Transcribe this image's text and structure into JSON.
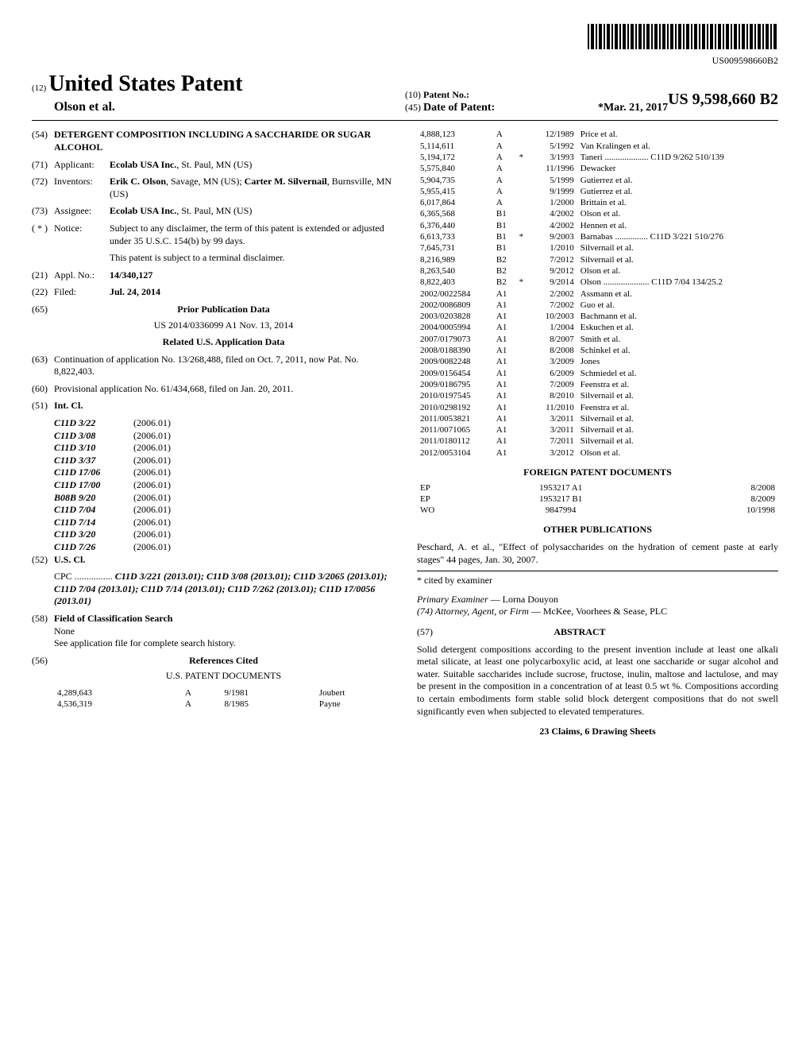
{
  "barcode_text": "US009598660B2",
  "header": {
    "prefix": "(12)",
    "title": "United States Patent",
    "authors": "Olson et al.",
    "patent_no_prefix": "(10)",
    "patent_no_label": "Patent No.:",
    "patent_no": "US 9,598,660 B2",
    "date_prefix": "(45)",
    "date_label": "Date of Patent:",
    "date_value": "*Mar. 21, 2017"
  },
  "left": {
    "title_num": "(54)",
    "title": "DETERGENT COMPOSITION INCLUDING A SACCHARIDE OR SUGAR ALCOHOL",
    "applicant_num": "(71)",
    "applicant_label": "Applicant:",
    "applicant": "Ecolab USA Inc., St. Paul, MN (US)",
    "inventors_num": "(72)",
    "inventors_label": "Inventors:",
    "inventors": "Erik C. Olson, Savage, MN (US); Carter M. Silvernail, Burnsville, MN (US)",
    "assignee_num": "(73)",
    "assignee_label": "Assignee:",
    "assignee": "Ecolab USA Inc., St. Paul, MN (US)",
    "notice_num": "( * )",
    "notice_label": "Notice:",
    "notice1": "Subject to any disclaimer, the term of this patent is extended or adjusted under 35 U.S.C. 154(b) by 99 days.",
    "notice2": "This patent is subject to a terminal disclaimer.",
    "appl_num": "(21)",
    "appl_label": "Appl. No.:",
    "appl_value": "14/340,127",
    "filed_num": "(22)",
    "filed_label": "Filed:",
    "filed_value": "Jul. 24, 2014",
    "prior_num": "(65)",
    "prior_title": "Prior Publication Data",
    "prior_line": "US 2014/0336099 A1    Nov. 13, 2014",
    "related_title": "Related U.S. Application Data",
    "cont_num": "(63)",
    "cont_text": "Continuation of application No. 13/268,488, filed on Oct. 7, 2011, now Pat. No. 8,822,403.",
    "prov_num": "(60)",
    "prov_text": "Provisional application No. 61/434,668, filed on Jan. 20, 2011.",
    "intcl_num": "(51)",
    "intcl_label": "Int. Cl.",
    "intcl": [
      [
        "C11D 3/22",
        "(2006.01)"
      ],
      [
        "C11D 3/08",
        "(2006.01)"
      ],
      [
        "C11D 3/10",
        "(2006.01)"
      ],
      [
        "C11D 3/37",
        "(2006.01)"
      ],
      [
        "C11D 17/06",
        "(2006.01)"
      ],
      [
        "C11D 17/00",
        "(2006.01)"
      ],
      [
        "B08B 9/20",
        "(2006.01)"
      ],
      [
        "C11D 7/04",
        "(2006.01)"
      ],
      [
        "C11D 7/14",
        "(2006.01)"
      ],
      [
        "C11D 3/20",
        "(2006.01)"
      ],
      [
        "C11D 7/26",
        "(2006.01)"
      ]
    ],
    "uscl_num": "(52)",
    "uscl_label": "U.S. Cl.",
    "cpc_label": "CPC",
    "cpc_text": "C11D 3/221 (2013.01); C11D 3/08 (2013.01); C11D 3/2065 (2013.01); C11D 7/04 (2013.01); C11D 7/14 (2013.01); C11D 7/262 (2013.01); C11D 17/0056 (2013.01)",
    "fcs_num": "(58)",
    "fcs_label": "Field of Classification Search",
    "fcs_none": "None",
    "fcs_text": "See application file for complete search history.",
    "refs_num": "(56)",
    "refs_title": "References Cited",
    "us_docs_title": "U.S. PATENT DOCUMENTS",
    "us_docs_left": [
      [
        "4,289,643",
        "A",
        "9/1981",
        "Joubert"
      ],
      [
        "4,536,319",
        "A",
        "8/1985",
        "Payne"
      ]
    ]
  },
  "right": {
    "us_docs": [
      [
        "4,888,123",
        "A",
        "",
        "12/1989",
        "Price et al."
      ],
      [
        "5,114,611",
        "A",
        "",
        "5/1992",
        "Van Kralingen et al."
      ],
      [
        "5,194,172",
        "A",
        "*",
        "3/1993",
        "Taneri .................... C11D 9/262 510/139"
      ],
      [
        "5,575,840",
        "A",
        "",
        "11/1996",
        "Dewacker"
      ],
      [
        "5,904,735",
        "A",
        "",
        "5/1999",
        "Gutierrez et al."
      ],
      [
        "5,955,415",
        "A",
        "",
        "9/1999",
        "Gutierrez et al."
      ],
      [
        "6,017,864",
        "A",
        "",
        "1/2000",
        "Brittain et al."
      ],
      [
        "6,365,568",
        "B1",
        "",
        "4/2002",
        "Olson et al."
      ],
      [
        "6,376,440",
        "B1",
        "",
        "4/2002",
        "Hennen et al."
      ],
      [
        "6,613,733",
        "B1",
        "*",
        "9/2003",
        "Barnabas ............... C11D 3/221 510/276"
      ],
      [
        "7,645,731",
        "B1",
        "",
        "1/2010",
        "Silvernail et al."
      ],
      [
        "8,216,989",
        "B2",
        "",
        "7/2012",
        "Silvernail et al."
      ],
      [
        "8,263,540",
        "B2",
        "",
        "9/2012",
        "Olson et al."
      ],
      [
        "8,822,403",
        "B2",
        "*",
        "9/2014",
        "Olson ..................... C11D 7/04 134/25.2"
      ],
      [
        "2002/0022584",
        "A1",
        "",
        "2/2002",
        "Assmann et al."
      ],
      [
        "2002/0086809",
        "A1",
        "",
        "7/2002",
        "Guo et al."
      ],
      [
        "2003/0203828",
        "A1",
        "",
        "10/2003",
        "Bachmann et al."
      ],
      [
        "2004/0005994",
        "A1",
        "",
        "1/2004",
        "Eskuchen et al."
      ],
      [
        "2007/0179073",
        "A1",
        "",
        "8/2007",
        "Smith et al."
      ],
      [
        "2008/0188390",
        "A1",
        "",
        "8/2008",
        "Schinkel et al."
      ],
      [
        "2009/0082248",
        "A1",
        "",
        "3/2009",
        "Jones"
      ],
      [
        "2009/0156454",
        "A1",
        "",
        "6/2009",
        "Schmiedel et al."
      ],
      [
        "2009/0186795",
        "A1",
        "",
        "7/2009",
        "Feenstra et al."
      ],
      [
        "2010/0197545",
        "A1",
        "",
        "8/2010",
        "Silvernail et al."
      ],
      [
        "2010/0298192",
        "A1",
        "",
        "11/2010",
        "Feenstra et al."
      ],
      [
        "2011/0053821",
        "A1",
        "",
        "3/2011",
        "Silvernail et al."
      ],
      [
        "2011/0071065",
        "A1",
        "",
        "3/2011",
        "Silvernail et al."
      ],
      [
        "2011/0180112",
        "A1",
        "",
        "7/2011",
        "Silvernail et al."
      ],
      [
        "2012/0053104",
        "A1",
        "",
        "3/2012",
        "Olson et al."
      ]
    ],
    "foreign_title": "FOREIGN PATENT DOCUMENTS",
    "foreign": [
      [
        "EP",
        "1953217 A1",
        "8/2008"
      ],
      [
        "EP",
        "1953217 B1",
        "8/2009"
      ],
      [
        "WO",
        "9847994",
        "10/1998"
      ]
    ],
    "other_title": "OTHER PUBLICATIONS",
    "other_text": "Peschard, A. et al., \"Effect of polysaccharides on the hydration of cement paste at early stages\" 44 pages, Jan. 30, 2007.",
    "cited_by": "* cited by examiner",
    "examiner_label": "Primary Examiner",
    "examiner": "Lorna Douyon",
    "attorney_label": "(74) Attorney, Agent, or Firm",
    "attorney": "McKee, Voorhees & Sease, PLC",
    "abstract_num": "(57)",
    "abstract_title": "ABSTRACT",
    "abstract_text": "Solid detergent compositions according to the present invention include at least one alkali metal silicate, at least one polycarboxylic acid, at least one saccharide or sugar alcohol and water. Suitable saccharides include sucrose, fructose, inulin, maltose and lactulose, and may be present in the composition in a concentration of at least 0.5 wt %. Compositions according to certain embodiments form stable solid block detergent compositions that do not swell significantly even when subjected to elevated temperatures.",
    "claims": "23 Claims, 6 Drawing Sheets"
  }
}
